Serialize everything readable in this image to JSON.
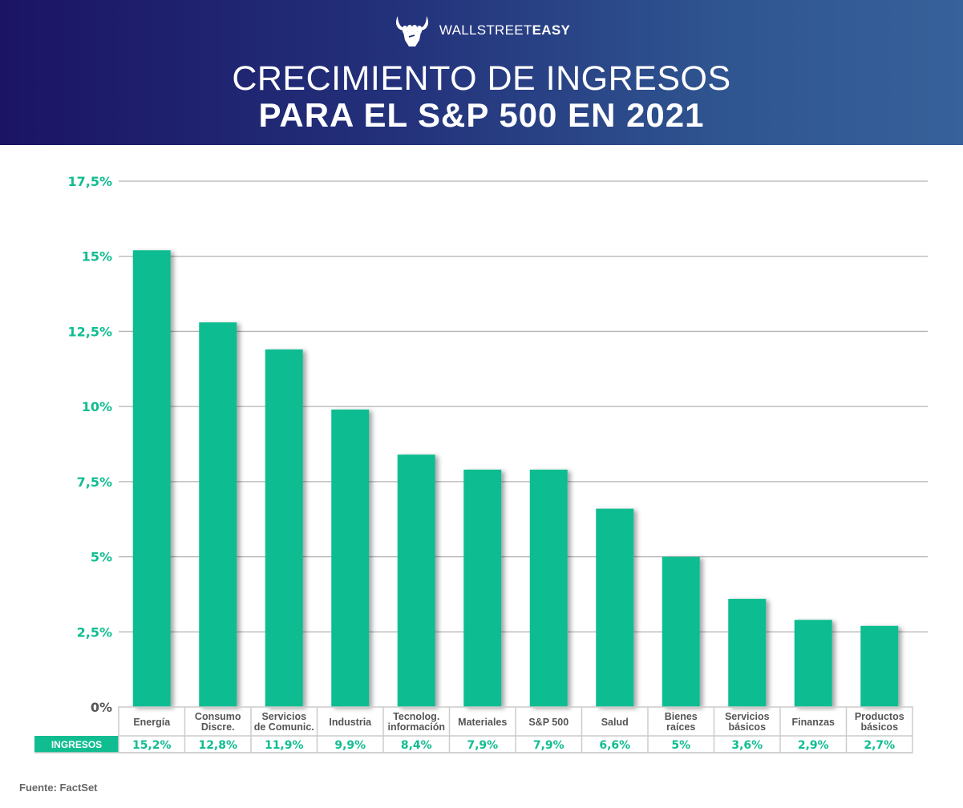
{
  "brand": {
    "name_light": "WALLSTREET",
    "name_bold": "EASY",
    "logo_icon": "fist-horns-icon"
  },
  "header": {
    "title_line1": "CRECIMIENTO DE INGRESOS",
    "title_line2": "PARA EL S&P 500 EN 2021"
  },
  "colors": {
    "bar": "#10bd91",
    "axis_label": "#10bd91",
    "zero_label": "#555555",
    "header_start": "#1b1464",
    "header_end": "#37619a",
    "table_header_bg": "#10bd91"
  },
  "chart_data": {
    "type": "bar",
    "title": "CRECIMIENTO DE INGRESOS PARA EL S&P 500 EN 2021",
    "xlabel": "",
    "ylabel": "",
    "ylim": [
      0,
      17.5
    ],
    "yticks": [
      0,
      2.5,
      5,
      7.5,
      10,
      12.5,
      15,
      17.5
    ],
    "ytick_labels": [
      "0%",
      "2,5%",
      "5%",
      "7,5%",
      "10%",
      "12,5%",
      "15%",
      "17,5%"
    ],
    "grid": true,
    "categories": [
      [
        "Energía"
      ],
      [
        "Consumo",
        "Discre."
      ],
      [
        "Servicios",
        "de Comunic."
      ],
      [
        "Industria"
      ],
      [
        "Tecnolog.",
        "información"
      ],
      [
        "Materiales"
      ],
      [
        "S&P 500"
      ],
      [
        "Salud"
      ],
      [
        "Bienes",
        "raíces"
      ],
      [
        "Servicios",
        "básicos"
      ],
      [
        "Finanzas"
      ],
      [
        "Productos",
        "básicos"
      ]
    ],
    "series": [
      {
        "name": "INGRESOS",
        "values": [
          15.2,
          12.8,
          11.9,
          9.9,
          8.4,
          7.9,
          7.9,
          6.6,
          5.0,
          3.6,
          2.9,
          2.7
        ],
        "value_labels": [
          "15,2%",
          "12,8%",
          "11,9%",
          "9,9%",
          "8,4%",
          "7,9%",
          "7,9%",
          "6,6%",
          "5%",
          "3,6%",
          "2,9%",
          "2,7%"
        ]
      }
    ],
    "table_row_label": "INGRESOS"
  },
  "footer": {
    "source": "Fuente: FactSet"
  }
}
